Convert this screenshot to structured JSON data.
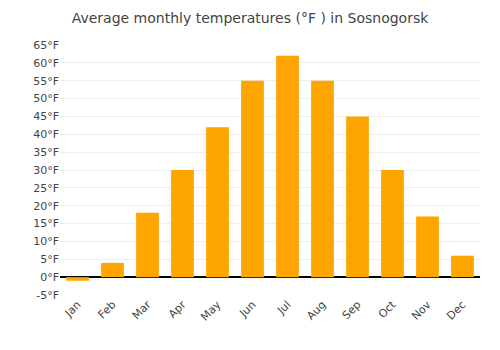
{
  "chart_data": {
    "type": "bar",
    "title": "Average monthly temperatures (°F ) in Sosnogorsk",
    "categories": [
      "Jan",
      "Feb",
      "Mar",
      "Apr",
      "May",
      "Jun",
      "Jul",
      "Aug",
      "Sep",
      "Oct",
      "Nov",
      "Dec"
    ],
    "values": [
      -1,
      4,
      18,
      30,
      42,
      55,
      62,
      55,
      45,
      30,
      17,
      6
    ],
    "color": "#FFA500",
    "ylim": [
      -5,
      65
    ],
    "yticks": [
      {
        "value": -5,
        "label": "-5°F"
      },
      {
        "value": 0,
        "label": "0°F"
      },
      {
        "value": 5,
        "label": "5°F"
      },
      {
        "value": 10,
        "label": "10°F"
      },
      {
        "value": 15,
        "label": "15°F"
      },
      {
        "value": 20,
        "label": "20°F"
      },
      {
        "value": 25,
        "label": "25°F"
      },
      {
        "value": 30,
        "label": "30°F"
      },
      {
        "value": 35,
        "label": "35°F"
      },
      {
        "value": 40,
        "label": "40°F"
      },
      {
        "value": 45,
        "label": "45°F"
      },
      {
        "value": 50,
        "label": "50°F"
      },
      {
        "value": 55,
        "label": "55°F"
      },
      {
        "value": 60,
        "label": "60°F"
      },
      {
        "value": 65,
        "label": "65°F"
      }
    ],
    "grid": true
  }
}
